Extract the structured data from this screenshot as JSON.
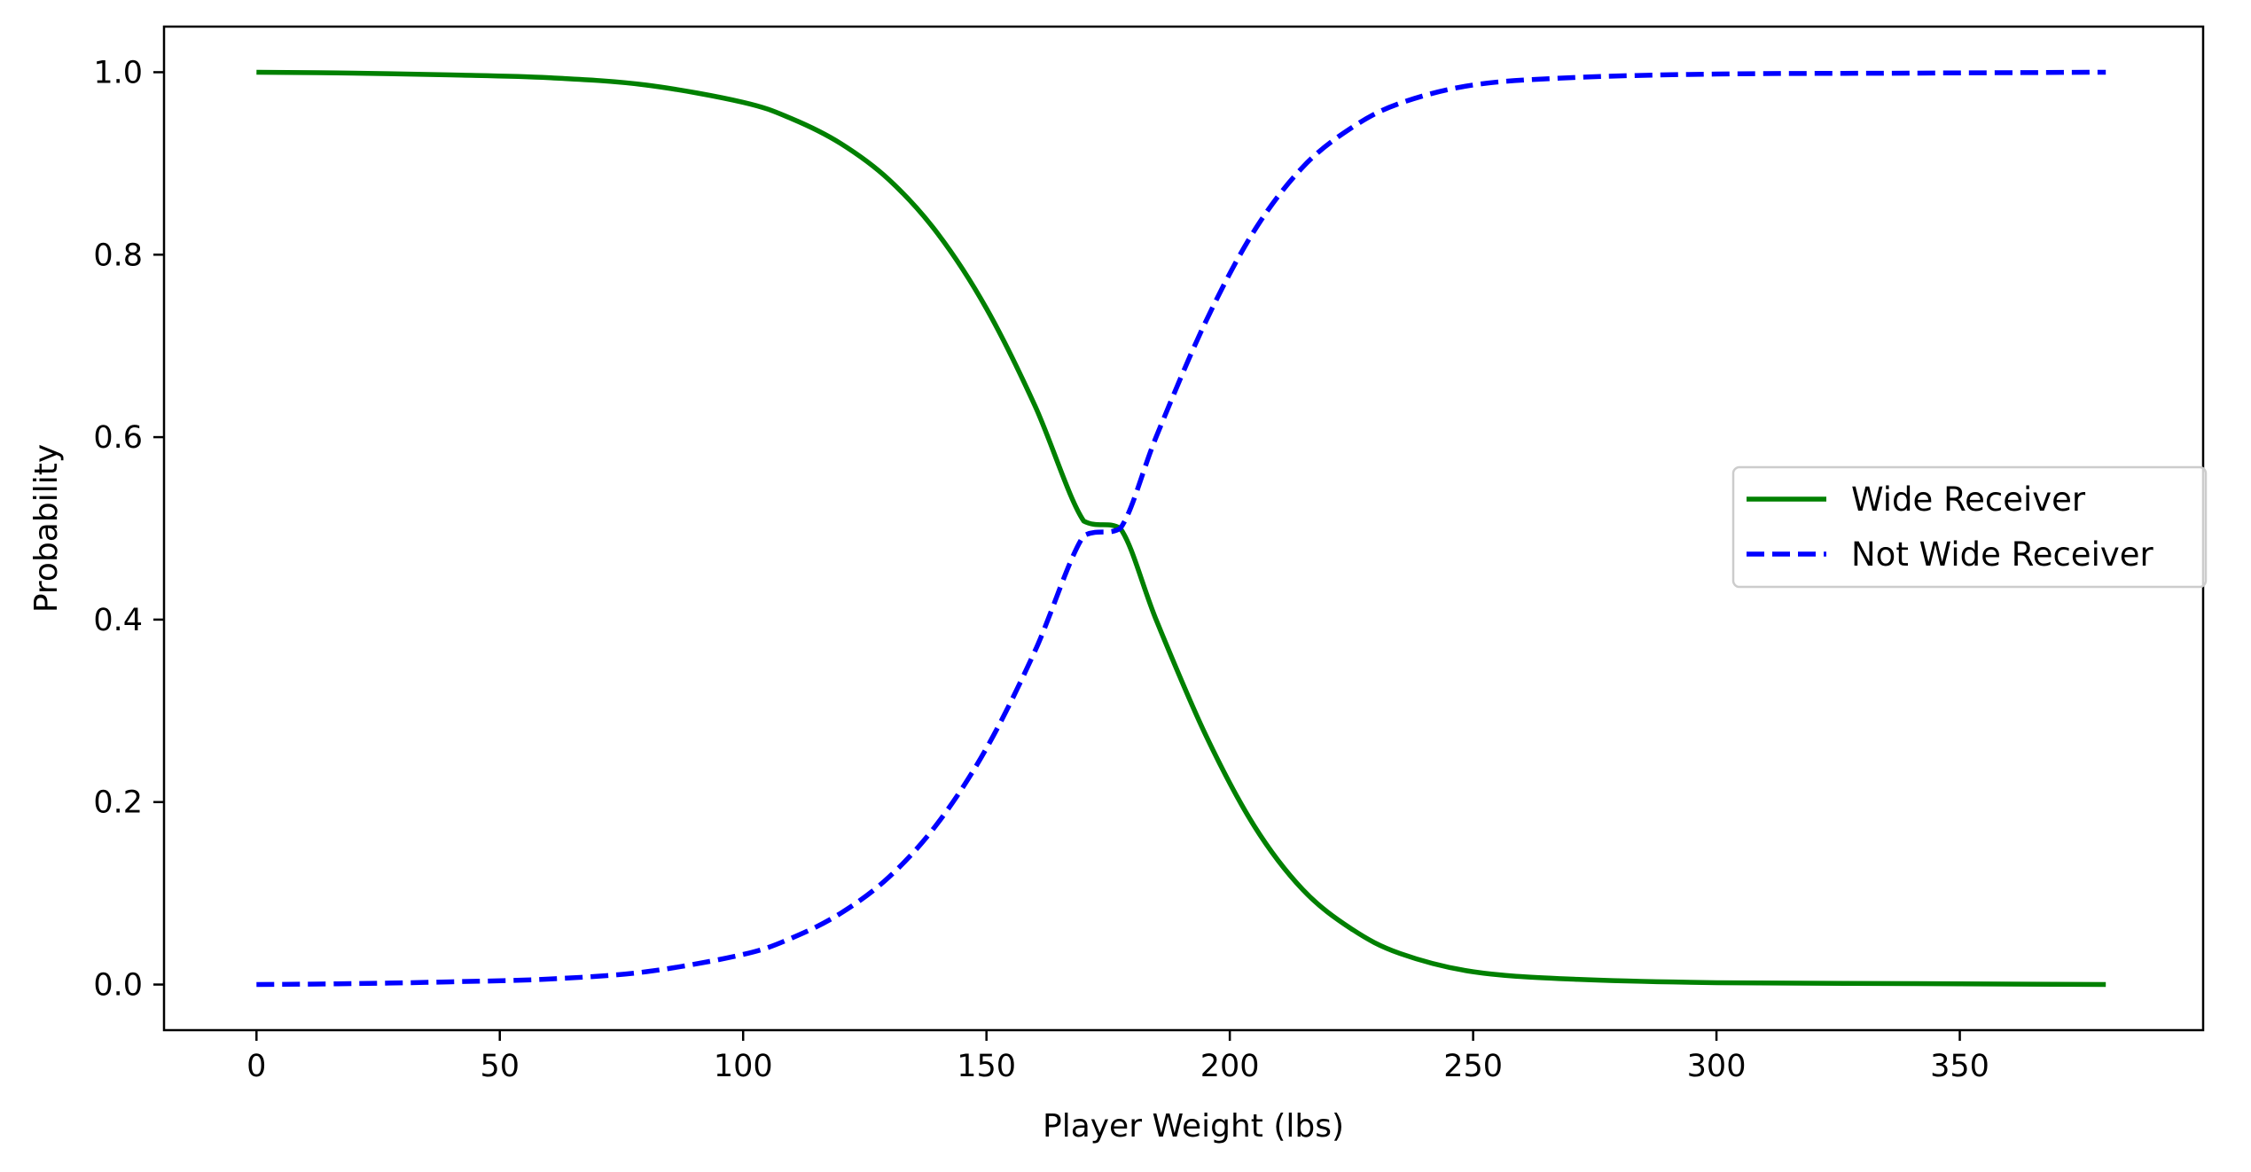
{
  "chart_data": {
    "type": "line",
    "title": "",
    "xlabel": "Player Weight (lbs)",
    "ylabel": "Probability",
    "xlim": [
      -19,
      400
    ],
    "ylim": [
      -0.05,
      1.05
    ],
    "x_ticks": [
      0,
      50,
      100,
      150,
      200,
      250,
      300,
      350
    ],
    "x_tick_labels": [
      "0",
      "50",
      "100",
      "150",
      "200",
      "250",
      "300",
      "350"
    ],
    "y_ticks": [
      0.0,
      0.2,
      0.4,
      0.6,
      0.8,
      1.0
    ],
    "y_tick_labels": [
      "0.0",
      "0.2",
      "0.4",
      "0.6",
      "0.8",
      "1.0"
    ],
    "grid": false,
    "legend_position": "center-right",
    "x": [
      0,
      20,
      40,
      60,
      80,
      100,
      110,
      120,
      130,
      140,
      150,
      160,
      170,
      177.5,
      185,
      195,
      205,
      215,
      225,
      235,
      250,
      270,
      300,
      340,
      380
    ],
    "series": [
      {
        "name": "Wide Receiver",
        "color": "#008000",
        "style": "solid",
        "values": [
          1.0,
          0.999,
          0.997,
          0.994,
          0.986,
          0.967,
          0.949,
          0.922,
          0.882,
          0.823,
          0.741,
          0.634,
          0.508,
          0.5,
          0.398,
          0.274,
          0.174,
          0.104,
          0.061,
          0.034,
          0.014,
          0.006,
          0.002,
          0.001,
          0.0
        ]
      },
      {
        "name": "Not Wide Receiver",
        "color": "#0000ff",
        "style": "dashed",
        "values": [
          0.0,
          0.001,
          0.003,
          0.006,
          0.014,
          0.033,
          0.051,
          0.078,
          0.118,
          0.177,
          0.259,
          0.366,
          0.492,
          0.5,
          0.602,
          0.726,
          0.826,
          0.896,
          0.939,
          0.966,
          0.986,
          0.994,
          0.998,
          0.999,
          1.0
        ]
      }
    ]
  }
}
